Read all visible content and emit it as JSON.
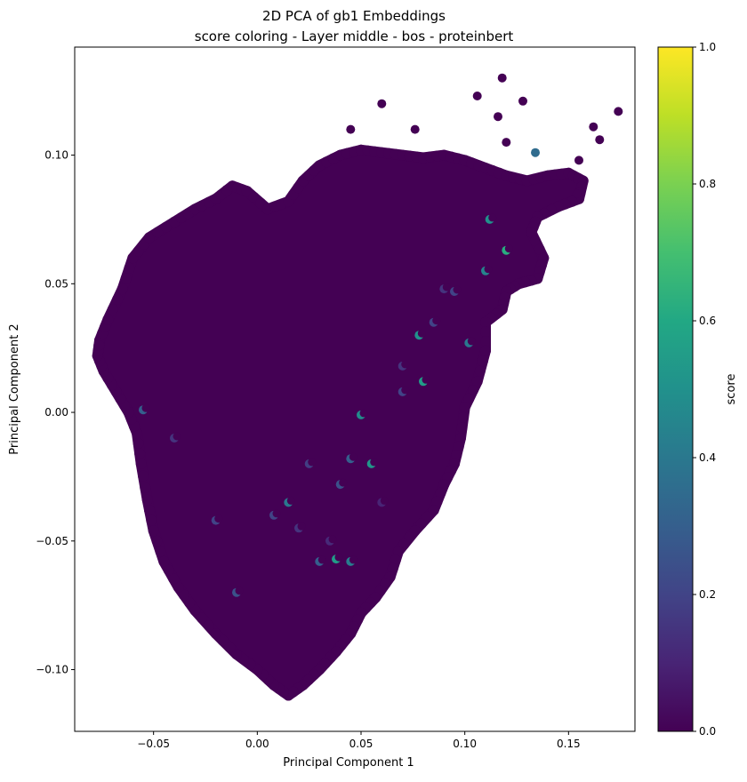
{
  "chart_data": {
    "type": "scatter",
    "title": "2D PCA of gb1 Embeddings",
    "subtitle": "score coloring - Layer middle - bos - proteinbert",
    "xlabel": "Principal Component 1",
    "ylabel": "Principal Component 2",
    "xlim": [
      -0.088,
      0.182
    ],
    "ylim": [
      -0.124,
      0.142
    ],
    "xticks": [
      -0.05,
      0.0,
      0.05,
      0.1,
      0.15
    ],
    "xtick_labels": [
      "−0.05",
      "0.00",
      "0.05",
      "0.10",
      "0.15"
    ],
    "yticks": [
      -0.1,
      -0.05,
      0.0,
      0.05,
      0.1
    ],
    "ytick_labels": [
      "−0.10",
      "−0.05",
      "0.00",
      "0.05",
      "0.10"
    ],
    "grid": false,
    "colorbar": {
      "label": "score",
      "colormap": "viridis",
      "range": [
        0.0,
        1.0
      ],
      "ticks": [
        0.0,
        0.2,
        0.4,
        0.6,
        0.8,
        1.0
      ],
      "tick_labels": [
        "0.0",
        "0.2",
        "0.4",
        "0.6",
        "0.8",
        "1.0"
      ],
      "colors": [
        "#440154",
        "#482475",
        "#414487",
        "#355f8d",
        "#2a788e",
        "#21918c",
        "#22a884",
        "#44bf70",
        "#7ad151",
        "#bddf26",
        "#fde725"
      ]
    },
    "cloud_outline": [
      [
        -0.076,
        0.028
      ],
      [
        -0.072,
        0.036
      ],
      [
        -0.065,
        0.048
      ],
      [
        -0.06,
        0.06
      ],
      [
        -0.052,
        0.068
      ],
      [
        -0.04,
        0.074
      ],
      [
        -0.03,
        0.079
      ],
      [
        -0.02,
        0.083
      ],
      [
        -0.012,
        0.088
      ],
      [
        -0.005,
        0.086
      ],
      [
        0.005,
        0.079
      ],
      [
        0.015,
        0.082
      ],
      [
        0.022,
        0.09
      ],
      [
        0.03,
        0.096
      ],
      [
        0.04,
        0.1
      ],
      [
        0.05,
        0.102
      ],
      [
        0.06,
        0.101
      ],
      [
        0.07,
        0.1
      ],
      [
        0.08,
        0.099
      ],
      [
        0.09,
        0.1
      ],
      [
        0.1,
        0.098
      ],
      [
        0.11,
        0.095
      ],
      [
        0.12,
        0.092
      ],
      [
        0.13,
        0.09
      ],
      [
        0.14,
        0.092
      ],
      [
        0.15,
        0.093
      ],
      [
        0.157,
        0.09
      ],
      [
        0.155,
        0.083
      ],
      [
        0.145,
        0.08
      ],
      [
        0.135,
        0.076
      ],
      [
        0.132,
        0.07
      ],
      [
        0.138,
        0.06
      ],
      [
        0.135,
        0.052
      ],
      [
        0.126,
        0.05
      ],
      [
        0.12,
        0.047
      ],
      [
        0.118,
        0.04
      ],
      [
        0.11,
        0.035
      ],
      [
        0.11,
        0.024
      ],
      [
        0.106,
        0.012
      ],
      [
        0.1,
        0.002
      ],
      [
        0.098,
        -0.01
      ],
      [
        0.095,
        -0.02
      ],
      [
        0.09,
        -0.028
      ],
      [
        0.085,
        -0.038
      ],
      [
        0.076,
        -0.046
      ],
      [
        0.068,
        -0.054
      ],
      [
        0.064,
        -0.064
      ],
      [
        0.057,
        -0.072
      ],
      [
        0.05,
        -0.078
      ],
      [
        0.045,
        -0.086
      ],
      [
        0.038,
        -0.093
      ],
      [
        0.03,
        -0.1
      ],
      [
        0.022,
        -0.106
      ],
      [
        0.015,
        -0.11
      ],
      [
        0.008,
        -0.106
      ],
      [
        0.0,
        -0.1
      ],
      [
        -0.01,
        -0.094
      ],
      [
        -0.02,
        -0.086
      ],
      [
        -0.03,
        -0.077
      ],
      [
        -0.038,
        -0.068
      ],
      [
        -0.045,
        -0.058
      ],
      [
        -0.05,
        -0.046
      ],
      [
        -0.053,
        -0.034
      ],
      [
        -0.056,
        -0.02
      ],
      [
        -0.058,
        -0.008
      ],
      [
        -0.062,
        0.0
      ],
      [
        -0.068,
        0.008
      ],
      [
        -0.074,
        0.016
      ],
      [
        -0.077,
        0.022
      ]
    ],
    "outlier_points": [
      {
        "x": 0.118,
        "y": 0.13,
        "score": 0.0
      },
      {
        "x": 0.174,
        "y": 0.117,
        "score": 0.0
      },
      {
        "x": 0.106,
        "y": 0.123,
        "score": 0.0
      },
      {
        "x": 0.128,
        "y": 0.121,
        "score": 0.0
      },
      {
        "x": 0.06,
        "y": 0.12,
        "score": 0.0
      },
      {
        "x": 0.162,
        "y": 0.111,
        "score": 0.0
      },
      {
        "x": 0.165,
        "y": 0.106,
        "score": 0.0
      },
      {
        "x": 0.134,
        "y": 0.101,
        "score": 0.35
      },
      {
        "x": 0.116,
        "y": 0.115,
        "score": 0.0
      },
      {
        "x": 0.045,
        "y": 0.11,
        "score": 0.0
      },
      {
        "x": 0.076,
        "y": 0.11,
        "score": 0.0
      },
      {
        "x": 0.12,
        "y": 0.105,
        "score": 0.0
      },
      {
        "x": 0.154,
        "y": 0.085,
        "score": 0.0
      },
      {
        "x": 0.155,
        "y": 0.098,
        "score": 0.0
      }
    ],
    "highlight_points": [
      {
        "x": 0.112,
        "y": 0.075,
        "score": 0.5
      },
      {
        "x": 0.12,
        "y": 0.063,
        "score": 0.62
      },
      {
        "x": 0.11,
        "y": 0.055,
        "score": 0.45
      },
      {
        "x": 0.095,
        "y": 0.047,
        "score": 0.2
      },
      {
        "x": 0.102,
        "y": 0.027,
        "score": 0.4
      },
      {
        "x": 0.078,
        "y": 0.03,
        "score": 0.5
      },
      {
        "x": 0.08,
        "y": 0.012,
        "score": 0.55
      },
      {
        "x": 0.07,
        "y": 0.018,
        "score": 0.15
      },
      {
        "x": 0.05,
        "y": -0.001,
        "score": 0.48
      },
      {
        "x": 0.045,
        "y": -0.018,
        "score": 0.3
      },
      {
        "x": 0.055,
        "y": -0.02,
        "score": 0.52
      },
      {
        "x": 0.04,
        "y": -0.028,
        "score": 0.25
      },
      {
        "x": 0.015,
        "y": -0.035,
        "score": 0.4
      },
      {
        "x": 0.008,
        "y": -0.04,
        "score": 0.2
      },
      {
        "x": 0.02,
        "y": -0.045,
        "score": 0.15
      },
      {
        "x": 0.035,
        "y": -0.05,
        "score": 0.12
      },
      {
        "x": 0.03,
        "y": -0.058,
        "score": 0.3
      },
      {
        "x": 0.038,
        "y": -0.057,
        "score": 0.55
      },
      {
        "x": 0.045,
        "y": -0.058,
        "score": 0.42
      },
      {
        "x": -0.02,
        "y": -0.042,
        "score": 0.2
      },
      {
        "x": -0.04,
        "y": -0.01,
        "score": 0.15
      },
      {
        "x": -0.055,
        "y": 0.001,
        "score": 0.3
      },
      {
        "x": -0.01,
        "y": -0.07,
        "score": 0.25
      },
      {
        "x": 0.06,
        "y": -0.035,
        "score": 0.1
      },
      {
        "x": 0.085,
        "y": 0.035,
        "score": 0.2
      },
      {
        "x": 0.09,
        "y": 0.048,
        "score": 0.15
      },
      {
        "x": 0.07,
        "y": 0.008,
        "score": 0.2
      },
      {
        "x": 0.025,
        "y": -0.02,
        "score": 0.18
      }
    ]
  }
}
